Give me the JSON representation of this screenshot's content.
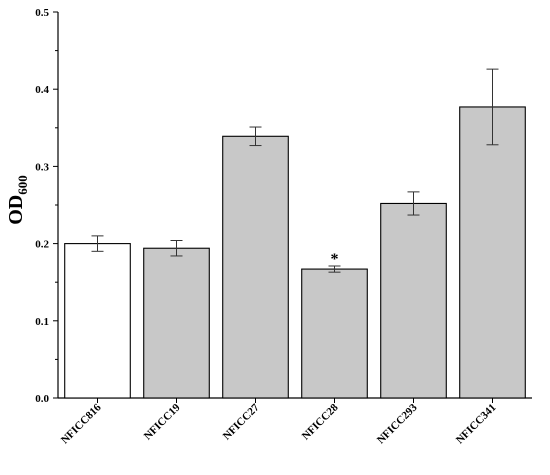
{
  "chart_data": {
    "type": "bar",
    "title": "",
    "xlabel": "",
    "ylabel": "OD",
    "ylabel_sub": "600",
    "ylim": [
      0,
      0.5
    ],
    "yticks": [
      "0.0",
      "0.1",
      "0.2",
      "0.3",
      "0.4",
      "0.5"
    ],
    "categories": [
      "NFICC816",
      "NFICC19",
      "NFICC27",
      "NFICC28",
      "NFICC293",
      "NFICC341"
    ],
    "values": [
      0.2,
      0.194,
      0.339,
      0.167,
      0.252,
      0.377
    ],
    "errors": [
      0.01,
      0.01,
      0.012,
      0.004,
      0.015,
      0.049
    ],
    "bar_colors": [
      "#ffffff",
      "#c8c8c8",
      "#c8c8c8",
      "#c8c8c8",
      "#c8c8c8",
      "#c8c8c8"
    ],
    "annotations": [
      {
        "category": "NFICC28",
        "text": "*"
      }
    ],
    "grid": false,
    "legend": "none"
  }
}
